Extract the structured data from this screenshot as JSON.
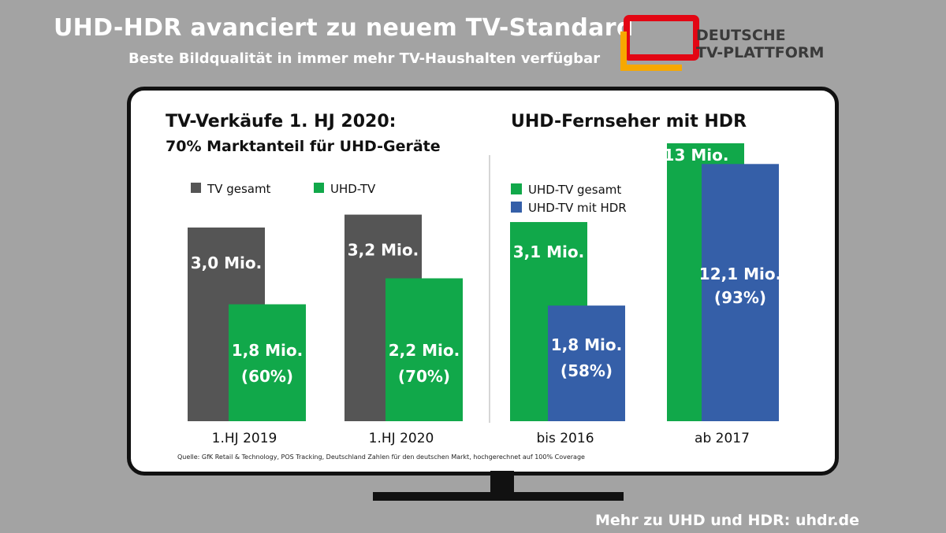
{
  "header": {
    "title": "UHD-HDR avanciert zu neuem TV-Standard",
    "subtitle": "Beste Bildqualität in immer mehr TV-Haushalten verfügbar"
  },
  "logo": {
    "line1": "DEUTSCHE",
    "line2": "TV-PLATTFORM",
    "colors": [
      "#e30613",
      "#f7a800",
      "#2b2b2b"
    ]
  },
  "footer": {
    "link_text": "Mehr zu UHD und HDR: uhdr.de"
  },
  "colors": {
    "tv_gesamt": "#555555",
    "uhd_green": "#11a84a",
    "hdr_blue": "#355fa8",
    "tv_frame": "#111111",
    "background": "#a3a3a3"
  },
  "chart_data": [
    {
      "type": "bar",
      "title": "TV-Verkäufe 1. HJ 2020:",
      "subtitle": "70% Marktanteil für UHD-Geräte",
      "categories": [
        "1.HJ 2019",
        "1.HJ 2020"
      ],
      "legend_position": "top-left",
      "series": [
        {
          "name": "TV gesamt",
          "values": [
            3.0,
            3.2
          ],
          "labels": [
            "3,0 Mio.",
            "3,2 Mio."
          ]
        },
        {
          "name": "UHD-TV",
          "values": [
            1.8,
            2.2
          ],
          "labels": [
            "1,8 Mio.\n(60%)",
            "2,2 Mio.\n(70%)"
          ]
        }
      ]
    },
    {
      "type": "bar",
      "title": "UHD-Fernseher mit HDR",
      "categories": [
        "bis 2016",
        "ab 2017"
      ],
      "legend_position": "top-left",
      "series": [
        {
          "name": "UHD-TV gesamt",
          "values": [
            3.1,
            13
          ],
          "labels": [
            "3,1 Mio.",
            "13 Mio."
          ]
        },
        {
          "name": "UHD-TV mit HDR",
          "values": [
            1.8,
            12.1
          ],
          "labels": [
            "1,8 Mio.\n(58%)",
            "12,1 Mio.\n(93%)"
          ]
        }
      ]
    }
  ],
  "source_note": "Quelle: GfK Retail & Technology, POS Tracking, Deutschland Zahlen für den deutschen Markt, hochgerechnet auf 100% Coverage"
}
